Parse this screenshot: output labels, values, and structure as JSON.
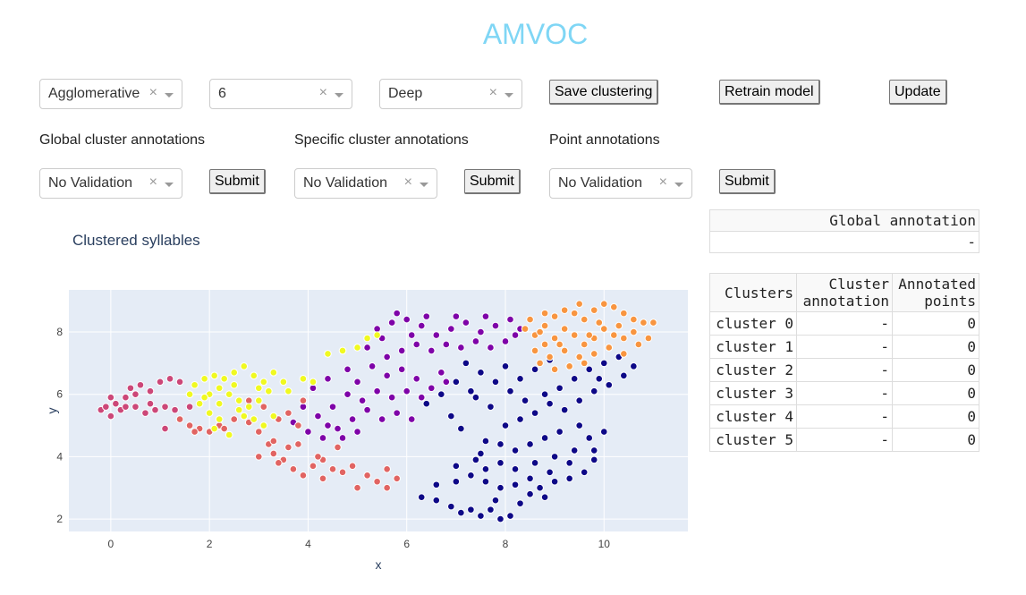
{
  "app": {
    "title": "AMVOC"
  },
  "controls": {
    "algorithm": {
      "value": "Agglomerative"
    },
    "n_clusters": {
      "value": "6"
    },
    "features": {
      "value": "Deep"
    },
    "save_label": "Save clustering",
    "retrain_label": "Retrain model",
    "update_label": "Update"
  },
  "annotations": {
    "global": {
      "label": "Global cluster annotations",
      "value": "No Validation",
      "submit": "Submit"
    },
    "specific": {
      "label": "Specific cluster annotations",
      "value": "No Validation",
      "submit": "Submit"
    },
    "point": {
      "label": "Point annotations",
      "value": "No Validation",
      "submit": "Submit"
    }
  },
  "icons": {
    "clear": "clear-x-icon",
    "caret": "caret-down-icon"
  },
  "global_table": {
    "header": "Global annotation",
    "value": "-"
  },
  "clusters_table": {
    "headers": [
      "Clusters",
      "Cluster annotation",
      "Annotated points"
    ],
    "header_lines": [
      [
        "Clusters"
      ],
      [
        "Cluster",
        "annotation"
      ],
      [
        "Annotated",
        "points"
      ]
    ],
    "rows": [
      [
        "cluster 0",
        "-",
        "0"
      ],
      [
        "cluster 1",
        "-",
        "0"
      ],
      [
        "cluster 2",
        "-",
        "0"
      ],
      [
        "cluster 3",
        "-",
        "0"
      ],
      [
        "cluster 4",
        "-",
        "0"
      ],
      [
        "cluster 5",
        "-",
        "0"
      ]
    ]
  },
  "chart_data": {
    "type": "scatter",
    "title": "Clustered syllables",
    "xlabel": "x",
    "ylabel": "y",
    "xlim": [
      -0.85,
      11.7
    ],
    "ylim": [
      1.6,
      9.35
    ],
    "xticks": [
      0,
      2,
      4,
      6,
      8,
      10
    ],
    "yticks": [
      2,
      4,
      6,
      8
    ],
    "grid": true,
    "background": "#e5ecf6",
    "series": [
      {
        "color": "#0d0887",
        "points": [
          [
            6.3,
            2.7
          ],
          [
            6.6,
            2.6
          ],
          [
            6.9,
            2.4
          ],
          [
            7.1,
            2.2
          ],
          [
            7.3,
            2.3
          ],
          [
            7.5,
            2.1
          ],
          [
            7.7,
            2.3
          ],
          [
            7.9,
            2.0
          ],
          [
            8.1,
            2.1
          ],
          [
            8.3,
            2.5
          ],
          [
            8.5,
            2.8
          ],
          [
            8.7,
            3.0
          ],
          [
            9.0,
            3.2
          ],
          [
            9.3,
            3.3
          ],
          [
            9.6,
            3.5
          ],
          [
            9.8,
            3.9
          ],
          [
            9.3,
            3.8
          ],
          [
            8.9,
            3.5
          ],
          [
            8.5,
            3.3
          ],
          [
            8.2,
            3.1
          ],
          [
            7.9,
            3.0
          ],
          [
            7.6,
            3.2
          ],
          [
            7.3,
            3.4
          ],
          [
            7.0,
            3.2
          ],
          [
            7.4,
            3.9
          ],
          [
            7.6,
            3.6
          ],
          [
            7.9,
            3.8
          ],
          [
            8.2,
            3.6
          ],
          [
            8.6,
            3.8
          ],
          [
            9.0,
            4.0
          ],
          [
            9.4,
            4.2
          ],
          [
            9.7,
            4.6
          ],
          [
            9.5,
            5.0
          ],
          [
            9.1,
            4.8
          ],
          [
            8.8,
            4.6
          ],
          [
            8.5,
            4.4
          ],
          [
            8.2,
            4.2
          ],
          [
            7.9,
            4.4
          ],
          [
            7.6,
            4.5
          ],
          [
            8.0,
            5.0
          ],
          [
            8.3,
            5.2
          ],
          [
            8.6,
            5.4
          ],
          [
            8.9,
            5.7
          ],
          [
            9.2,
            5.5
          ],
          [
            9.5,
            5.8
          ],
          [
            9.8,
            6.1
          ],
          [
            10.1,
            6.3
          ],
          [
            10.4,
            6.6
          ],
          [
            10.6,
            6.9
          ],
          [
            10.3,
            7.2
          ],
          [
            10.0,
            7.0
          ],
          [
            9.7,
            6.8
          ],
          [
            9.4,
            6.5
          ],
          [
            9.1,
            6.2
          ],
          [
            8.8,
            6.0
          ],
          [
            8.4,
            5.8
          ],
          [
            8.1,
            6.1
          ],
          [
            7.8,
            6.4
          ],
          [
            7.5,
            6.7
          ],
          [
            7.2,
            7.0
          ],
          [
            7.0,
            6.4
          ],
          [
            6.7,
            6.0
          ],
          [
            6.4,
            5.7
          ],
          [
            6.9,
            5.3
          ],
          [
            7.4,
            5.9
          ],
          [
            7.7,
            5.6
          ],
          [
            7.3,
            6.1
          ],
          [
            8.0,
            6.9
          ],
          [
            8.3,
            6.5
          ],
          [
            7.0,
            3.7
          ],
          [
            6.6,
            3.1
          ],
          [
            7.8,
            2.6
          ],
          [
            8.8,
            2.7
          ],
          [
            9.8,
            4.2
          ],
          [
            10.0,
            4.8
          ],
          [
            8.6,
            6.8
          ],
          [
            8.9,
            7.1
          ],
          [
            9.9,
            6.5
          ],
          [
            7.1,
            4.9
          ],
          [
            7.5,
            4.1
          ]
        ]
      },
      {
        "color": "#7e03a8",
        "points": [
          [
            5.4,
            8.1
          ],
          [
            5.7,
            8.3
          ],
          [
            6.0,
            8.4
          ],
          [
            6.3,
            8.2
          ],
          [
            6.6,
            7.9
          ],
          [
            6.9,
            8.1
          ],
          [
            7.2,
            8.3
          ],
          [
            7.5,
            8.0
          ],
          [
            7.8,
            8.2
          ],
          [
            8.1,
            8.4
          ],
          [
            8.3,
            8.1
          ],
          [
            8.0,
            7.7
          ],
          [
            7.7,
            7.5
          ],
          [
            7.4,
            7.7
          ],
          [
            7.1,
            7.5
          ],
          [
            6.8,
            7.6
          ],
          [
            6.5,
            7.4
          ],
          [
            6.2,
            7.6
          ],
          [
            5.9,
            7.4
          ],
          [
            5.6,
            7.2
          ],
          [
            5.3,
            6.9
          ],
          [
            5.6,
            6.6
          ],
          [
            5.9,
            6.8
          ],
          [
            6.2,
            6.5
          ],
          [
            6.5,
            6.2
          ],
          [
            6.8,
            6.4
          ],
          [
            6.3,
            5.9
          ],
          [
            6.0,
            6.1
          ],
          [
            5.7,
            5.9
          ],
          [
            5.4,
            6.1
          ],
          [
            5.1,
            5.8
          ],
          [
            4.8,
            6.0
          ],
          [
            4.5,
            5.6
          ],
          [
            4.2,
            5.3
          ],
          [
            3.9,
            5.6
          ],
          [
            3.7,
            5.1
          ],
          [
            4.0,
            4.8
          ],
          [
            4.3,
            4.6
          ],
          [
            4.6,
            4.9
          ],
          [
            4.9,
            5.2
          ],
          [
            5.2,
            5.5
          ],
          [
            5.5,
            5.2
          ],
          [
            5.8,
            5.4
          ],
          [
            6.1,
            5.2
          ],
          [
            4.7,
            4.6
          ],
          [
            5.0,
            4.8
          ],
          [
            4.4,
            5.0
          ],
          [
            4.1,
            6.2
          ],
          [
            4.4,
            6.5
          ],
          [
            4.8,
            6.8
          ],
          [
            5.2,
            7.5
          ],
          [
            5.5,
            7.8
          ],
          [
            6.1,
            7.9
          ],
          [
            6.4,
            8.5
          ],
          [
            7.0,
            8.5
          ],
          [
            7.6,
            8.5
          ],
          [
            8.2,
            7.9
          ],
          [
            5.8,
            8.6
          ],
          [
            5.0,
            6.4
          ],
          [
            6.7,
            6.7
          ]
        ]
      },
      {
        "color": "#cc4778",
        "points": [
          [
            -0.2,
            5.5
          ],
          [
            0.0,
            5.3
          ],
          [
            0.1,
            5.7
          ],
          [
            0.3,
            5.9
          ],
          [
            0.2,
            5.5
          ],
          [
            0.5,
            5.6
          ],
          [
            0.7,
            5.4
          ],
          [
            0.9,
            5.5
          ],
          [
            1.1,
            5.6
          ],
          [
            1.3,
            5.5
          ],
          [
            0.4,
            6.2
          ],
          [
            0.6,
            6.3
          ],
          [
            0.8,
            6.1
          ],
          [
            1.0,
            6.4
          ],
          [
            1.2,
            6.5
          ],
          [
            1.4,
            6.4
          ],
          [
            1.1,
            4.9
          ],
          [
            0.8,
            5.7
          ],
          [
            0.5,
            6.0
          ],
          [
            0.0,
            5.9
          ],
          [
            1.6,
            5.6
          ],
          [
            0.3,
            5.6
          ],
          [
            -0.1,
            5.6
          ]
        ]
      },
      {
        "color": "#e16462",
        "points": [
          [
            1.4,
            5.2
          ],
          [
            1.6,
            5.0
          ],
          [
            1.8,
            4.9
          ],
          [
            2.0,
            4.8
          ],
          [
            2.2,
            5.0
          ],
          [
            2.5,
            5.2
          ],
          [
            2.8,
            5.1
          ],
          [
            3.0,
            4.8
          ],
          [
            3.2,
            4.4
          ],
          [
            3.3,
            4.1
          ],
          [
            3.5,
            3.9
          ],
          [
            3.7,
            3.6
          ],
          [
            3.9,
            3.4
          ],
          [
            4.1,
            3.7
          ],
          [
            4.3,
            3.9
          ],
          [
            4.5,
            3.6
          ],
          [
            4.7,
            3.5
          ],
          [
            4.9,
            3.7
          ],
          [
            5.2,
            3.4
          ],
          [
            5.4,
            3.2
          ],
          [
            5.6,
            3.0
          ],
          [
            5.8,
            3.3
          ],
          [
            5.6,
            3.6
          ],
          [
            3.0,
            4.0
          ],
          [
            3.3,
            4.5
          ],
          [
            3.6,
            4.3
          ],
          [
            3.8,
            5.0
          ],
          [
            3.6,
            5.4
          ],
          [
            3.9,
            5.8
          ],
          [
            3.4,
            5.2
          ],
          [
            3.1,
            5.6
          ],
          [
            2.8,
            5.8
          ],
          [
            1.7,
            4.8
          ],
          [
            4.2,
            4.0
          ],
          [
            4.6,
            4.3
          ],
          [
            2.3,
            4.9
          ],
          [
            3.4,
            3.8
          ],
          [
            3.8,
            4.4
          ],
          [
            4.3,
            3.3
          ],
          [
            5.0,
            3.0
          ]
        ]
      },
      {
        "color": "#f89540",
        "points": [
          [
            8.4,
            8.1
          ],
          [
            8.6,
            7.9
          ],
          [
            8.8,
            8.2
          ],
          [
            9.0,
            8.5
          ],
          [
            9.2,
            8.7
          ],
          [
            9.4,
            8.6
          ],
          [
            9.6,
            8.4
          ],
          [
            9.8,
            8.7
          ],
          [
            10.0,
            8.9
          ],
          [
            10.2,
            8.8
          ],
          [
            10.4,
            8.6
          ],
          [
            10.6,
            8.4
          ],
          [
            10.8,
            8.3
          ],
          [
            10.6,
            8.0
          ],
          [
            10.4,
            7.8
          ],
          [
            10.2,
            7.9
          ],
          [
            10.0,
            8.1
          ],
          [
            9.8,
            7.8
          ],
          [
            9.6,
            7.6
          ],
          [
            9.4,
            7.9
          ],
          [
            9.2,
            8.1
          ],
          [
            9.0,
            7.8
          ],
          [
            8.8,
            7.6
          ],
          [
            8.6,
            7.4
          ],
          [
            8.9,
            7.2
          ],
          [
            9.2,
            7.4
          ],
          [
            9.5,
            7.2
          ],
          [
            9.8,
            7.3
          ],
          [
            10.1,
            7.5
          ],
          [
            10.4,
            7.3
          ],
          [
            9.0,
            6.8
          ],
          [
            9.3,
            6.9
          ],
          [
            9.6,
            7.0
          ],
          [
            8.7,
            7.0
          ],
          [
            11.0,
            8.3
          ],
          [
            10.9,
            7.8
          ],
          [
            8.5,
            8.4
          ],
          [
            8.8,
            8.6
          ],
          [
            9.5,
            8.9
          ],
          [
            10.3,
            8.2
          ],
          [
            9.9,
            8.3
          ],
          [
            9.1,
            7.6
          ],
          [
            8.7,
            8.0
          ],
          [
            10.7,
            7.6
          ],
          [
            9.7,
            7.9
          ]
        ]
      },
      {
        "color": "#f0f921",
        "points": [
          [
            1.6,
            6.0
          ],
          [
            1.7,
            6.3
          ],
          [
            1.9,
            6.5
          ],
          [
            2.1,
            6.6
          ],
          [
            2.3,
            6.5
          ],
          [
            2.5,
            6.7
          ],
          [
            2.7,
            6.9
          ],
          [
            2.9,
            6.6
          ],
          [
            3.1,
            6.4
          ],
          [
            3.2,
            6.1
          ],
          [
            3.0,
            5.8
          ],
          [
            2.8,
            5.6
          ],
          [
            2.6,
            5.8
          ],
          [
            2.4,
            6.0
          ],
          [
            2.2,
            6.2
          ],
          [
            2.0,
            6.0
          ],
          [
            1.8,
            5.7
          ],
          [
            2.0,
            5.4
          ],
          [
            2.2,
            5.2
          ],
          [
            2.6,
            5.5
          ],
          [
            2.9,
            5.2
          ],
          [
            3.1,
            5.0
          ],
          [
            3.3,
            5.3
          ],
          [
            3.5,
            6.4
          ],
          [
            3.6,
            6.1
          ],
          [
            3.9,
            6.5
          ],
          [
            4.1,
            6.4
          ],
          [
            4.4,
            7.3
          ],
          [
            4.7,
            7.4
          ],
          [
            5.0,
            7.5
          ],
          [
            5.2,
            7.8
          ],
          [
            5.4,
            7.9
          ],
          [
            2.4,
            4.7
          ],
          [
            2.1,
            4.9
          ],
          [
            2.5,
            6.3
          ],
          [
            2.2,
            5.7
          ],
          [
            1.9,
            5.9
          ],
          [
            3.0,
            6.2
          ],
          [
            2.7,
            5.3
          ],
          [
            3.3,
            6.7
          ]
        ]
      }
    ]
  }
}
